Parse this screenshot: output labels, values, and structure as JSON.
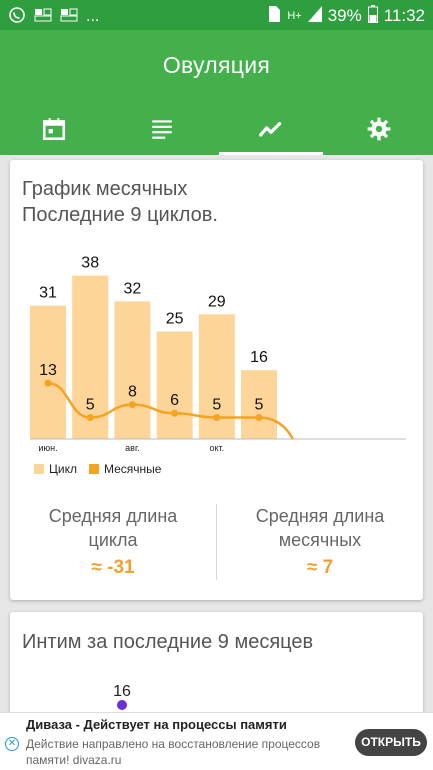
{
  "status_bar": {
    "left_icons": [
      "whatsapp-icon",
      "notification-icon",
      "notification-icon",
      "more-icon"
    ],
    "more": "...",
    "signal": "H+",
    "battery": "39%",
    "time": "11:32"
  },
  "app": {
    "title": "Овуляция",
    "tabs": [
      {
        "icon": "calendar-icon",
        "active": false
      },
      {
        "icon": "list-icon",
        "active": false
      },
      {
        "icon": "chart-icon",
        "active": true
      },
      {
        "icon": "gear-icon",
        "active": false
      }
    ]
  },
  "card1": {
    "title_line1": "График месячных",
    "title_line2": "Последние 9 циклов.",
    "chart_data": {
      "type": "bar",
      "categories": [
        "июн.",
        "",
        "авг.",
        "",
        "окт.",
        "",
        "",
        "",
        ""
      ],
      "series": [
        {
          "name": "Цикл",
          "type": "bar",
          "color": "#fdd598",
          "values": [
            31,
            38,
            32,
            25,
            29,
            16,
            null,
            null,
            null
          ]
        },
        {
          "name": "Месячные",
          "type": "line",
          "color": "#f4a322",
          "values": [
            13,
            5,
            8,
            6,
            5,
            5,
            null,
            null,
            null
          ]
        }
      ],
      "legend": [
        "Цикл",
        "Месячные"
      ],
      "legend_position": "bottom-left"
    },
    "stats": {
      "cycle_label": "Средняя длина цикла",
      "cycle_value": "≈ -31",
      "period_label": "Средняя длина месячных",
      "period_value": "≈ 7"
    }
  },
  "card2": {
    "title": "Интим за последние 9 месяцев",
    "point_value": "16",
    "point_color": "#6a2fd6"
  },
  "ad": {
    "title": "Диваза - Действует на процессы памяти",
    "text": "Действие направлено на восстановление процессов памяти! divaza.ru",
    "button": "ОТКРЫТЬ"
  }
}
